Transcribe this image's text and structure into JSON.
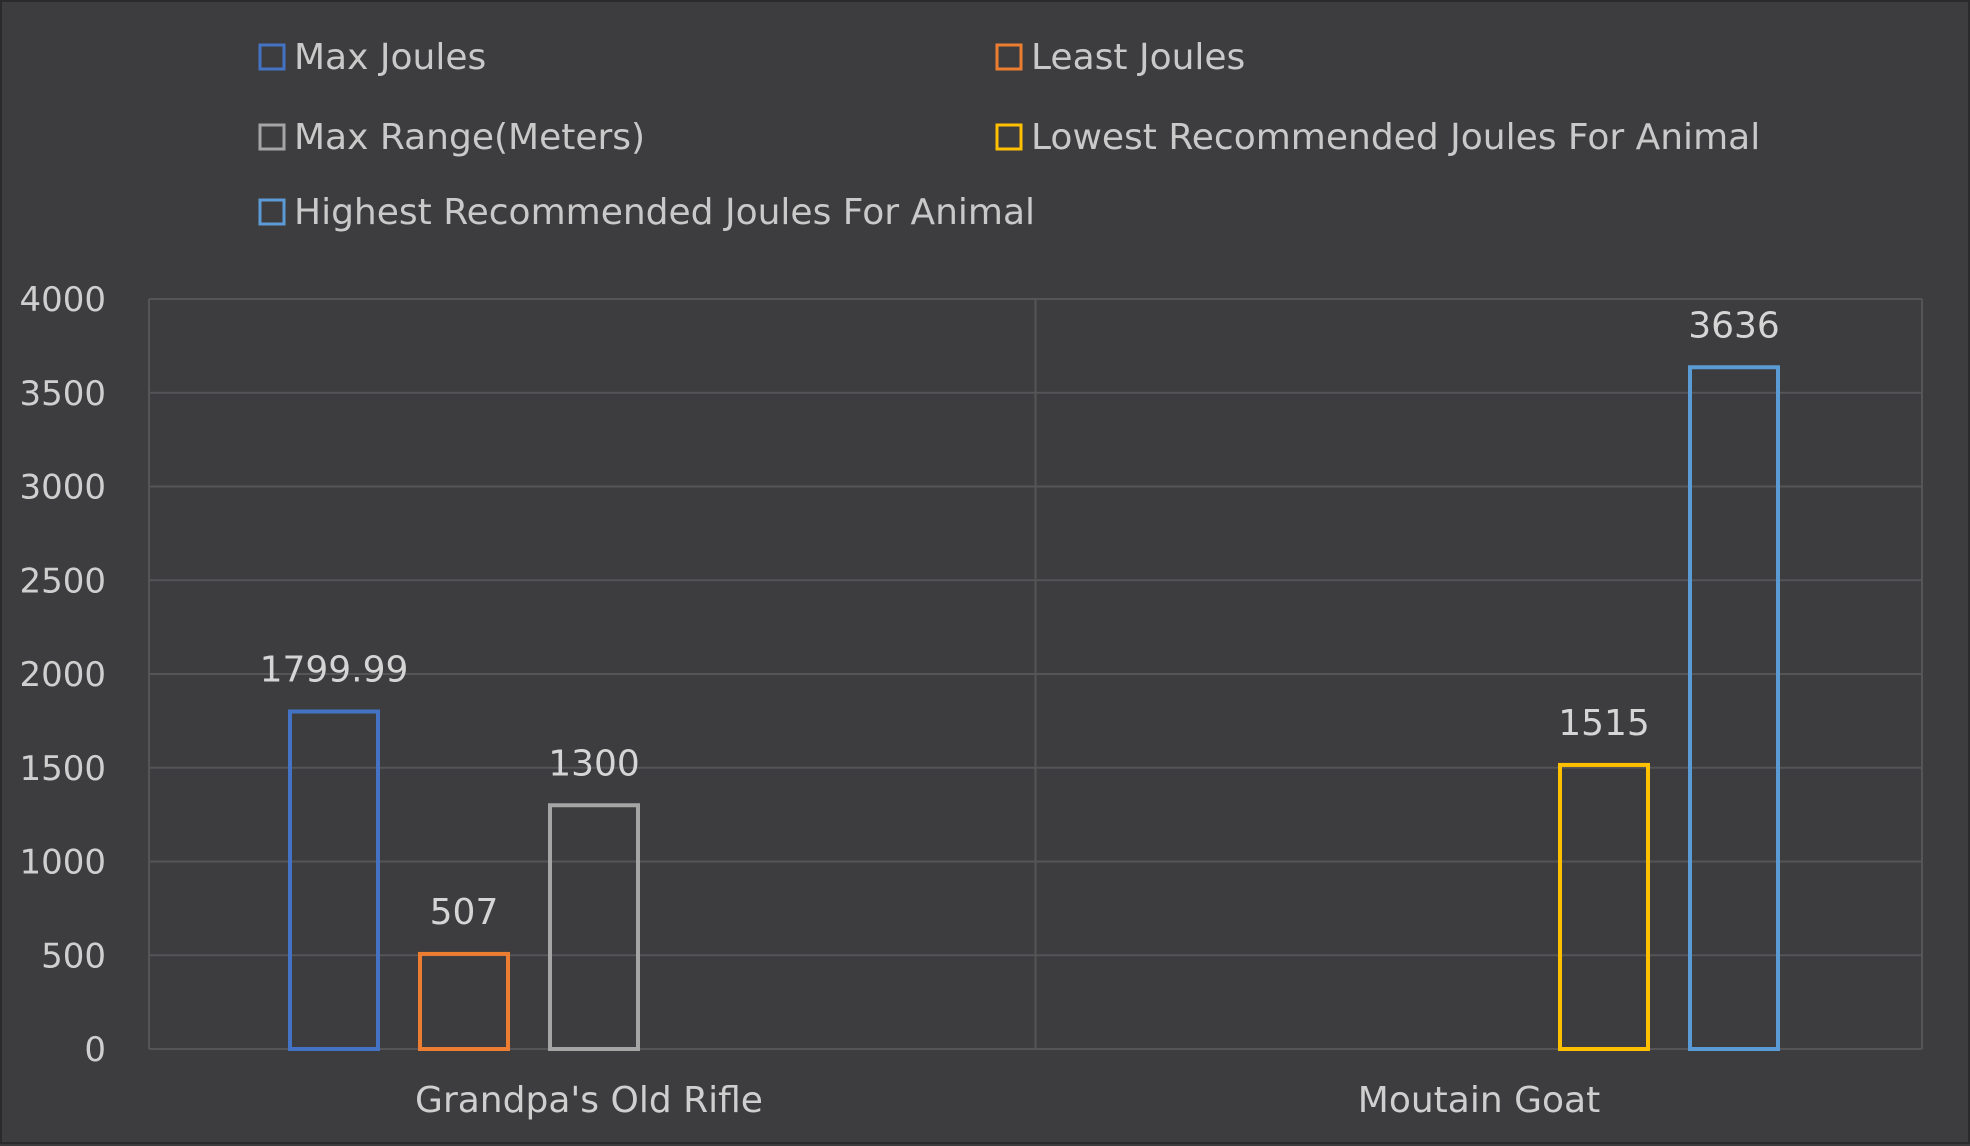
{
  "colors": {
    "background": "#3d3d3f",
    "grid": "#555558",
    "text": "#cfcfcf"
  },
  "chart_data": {
    "type": "bar",
    "title": "",
    "xlabel": "",
    "ylabel": "",
    "ylim": [
      0,
      4000
    ],
    "yticks": [
      0,
      500,
      1000,
      1500,
      2000,
      2500,
      3000,
      3500,
      4000
    ],
    "grid": true,
    "legend_position": "top",
    "bar_style": "outline",
    "categories": [
      "Grandpa's Old Rifle",
      "Moutain Goat"
    ],
    "series": [
      {
        "name": "Max Joules",
        "color": "#4472c4",
        "values": [
          1799.99,
          null
        ],
        "labels": [
          "1799.99",
          ""
        ]
      },
      {
        "name": "Least Joules",
        "color": "#ed7d31",
        "values": [
          507,
          null
        ],
        "labels": [
          "507",
          ""
        ]
      },
      {
        "name": "Max Range(Meters)",
        "color": "#a5a5a5",
        "values": [
          1300,
          null
        ],
        "labels": [
          "1300",
          ""
        ]
      },
      {
        "name": "Lowest Recommended Joules For Animal",
        "color": "#ffc000",
        "values": [
          null,
          1515
        ],
        "labels": [
          "",
          "1515"
        ]
      },
      {
        "name": "Highest Recommended Joules For Animal",
        "color": "#5b9bd5",
        "values": [
          null,
          3636
        ],
        "labels": [
          "",
          "3636"
        ]
      }
    ]
  }
}
